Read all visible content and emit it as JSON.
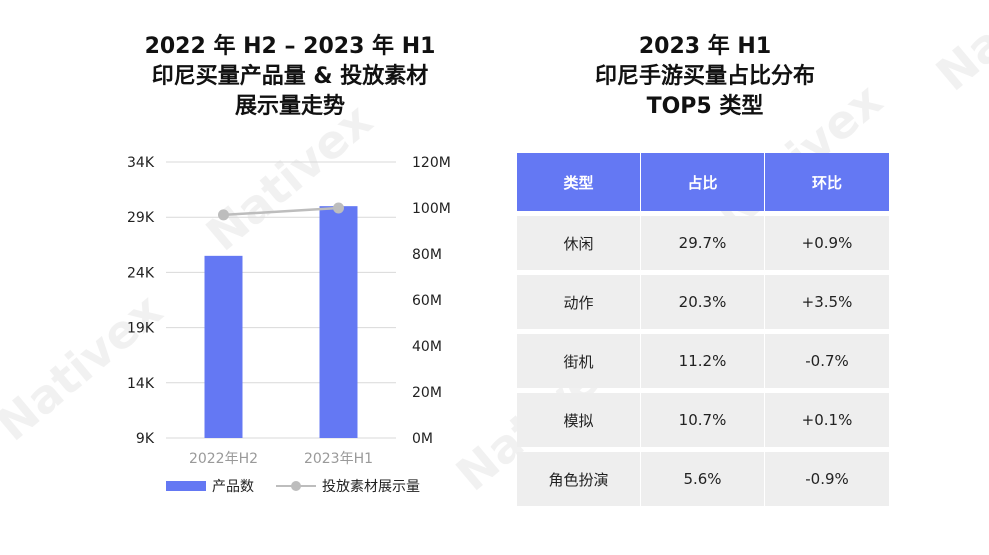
{
  "left_title": [
    "2022 年 H2 – 2023 年 H1",
    "印尼买量产品量 & 投放素材",
    "展示量走势"
  ],
  "right_title": [
    "2023 年 H1",
    "印尼手游买量占比分布",
    "TOP5 类型"
  ],
  "watermark_text": "Nativex",
  "chart_data": {
    "type": "bar",
    "categories": [
      "2022年H2",
      "2023年H1"
    ],
    "series": [
      {
        "name": "产品数",
        "kind": "bar",
        "axis": "left",
        "values": [
          25500,
          30000
        ]
      },
      {
        "name": "投放素材展示量",
        "kind": "line",
        "axis": "right",
        "values": [
          97000000,
          100000000
        ]
      }
    ],
    "left_axis": {
      "ticks": [
        "9K",
        "14K",
        "19K",
        "24K",
        "29K",
        "34K"
      ],
      "ylim": [
        9000,
        34000
      ]
    },
    "right_axis": {
      "ticks": [
        "0M",
        "20M",
        "40M",
        "60M",
        "80M",
        "100M",
        "120M"
      ],
      "ylim": [
        0,
        120000000
      ]
    },
    "grid": true,
    "legend_position": "bottom",
    "colors": {
      "bar": "#6478F3",
      "line": "#BDBDBD"
    }
  },
  "table": {
    "headers": [
      "类型",
      "占比",
      "环比"
    ],
    "rows": [
      [
        "休闲",
        "29.7%",
        "+0.9%"
      ],
      [
        "动作",
        "20.3%",
        "+3.5%"
      ],
      [
        "街机",
        "11.2%",
        "-0.7%"
      ],
      [
        "模拟",
        "10.7%",
        "+0.1%"
      ],
      [
        "角色扮演",
        "5.6%",
        "-0.9%"
      ]
    ]
  }
}
